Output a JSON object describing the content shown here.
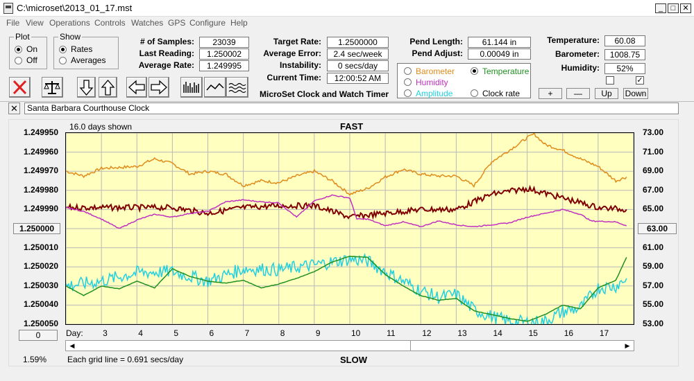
{
  "window": {
    "title": "C:\\microset\\2013_01_17.mst"
  },
  "menu": [
    "File",
    "View",
    "Operations",
    "Controls",
    "Watches",
    "GPS",
    "Configure",
    "Help"
  ],
  "plot_group": {
    "title": "Plot",
    "on": "On",
    "off": "Off",
    "selected": "On"
  },
  "show_group": {
    "title": "Show",
    "rates": "Rates",
    "averages": "Averages",
    "selected": "Rates"
  },
  "stats": {
    "samples_label": "# of Samples:",
    "samples": "23039",
    "last_label": "Last Reading:",
    "last": "1.250002",
    "avg_label": "Average Rate:",
    "avg": "1.249995"
  },
  "rates": {
    "target_label": "Target Rate:",
    "target": "1.2500000",
    "avgerr_label": "Average Error:",
    "avgerr": "2.4 sec/week",
    "instab_label": "Instability:",
    "instab": "0 secs/day",
    "time_label": "Current Time:",
    "time": "12:00:52 AM"
  },
  "app_title": "MicroSet Clock and Watch Timer",
  "pend": {
    "length_label": "Pend Length:",
    "length": "61.144 in",
    "adjust_label": "Pend Adjust:",
    "adjust": "0.00049 in"
  },
  "sensor_select": {
    "barometer": "Barometer",
    "temperature": "Temperature",
    "humidity": "Humidity",
    "amplitude": "Amplitude",
    "clock_rate": "Clock rate",
    "selected": "Temperature",
    "colors": {
      "barometer": "#e08b1a",
      "temperature": "#209020",
      "humidity": "#c030c0",
      "amplitude": "#20d0e0",
      "clock_rate": "#000000"
    }
  },
  "env": {
    "temp_label": "Temperature:",
    "temp": "60.08",
    "baro_label": "Barometer:",
    "baro": "1008.75",
    "hum_label": "Humidity:",
    "hum": "52%",
    "check1": false,
    "check2": true
  },
  "scale_buttons": {
    "plus": "+",
    "minus": "—",
    "up": "Up",
    "down": "Down"
  },
  "toolbar_icons": [
    "close-icon",
    "balance-icon",
    "arrow-down-icon",
    "arrow-up-icon",
    "arrow-left-icon",
    "arrow-right-icon",
    "bars-icon",
    "zigzag-icon",
    "waves-icon"
  ],
  "clock_name": "Santa Barbara Courthouse Clock",
  "chart_labels": {
    "days_shown": "16.0 days shown",
    "fast": "FAST",
    "slow": "SLOW",
    "grid_note": "Each grid line = 0.691 secs/day",
    "pct": "1.59%",
    "day_label": "Day:",
    "offset": "0",
    "center_left": "1.250000",
    "center_right": "63.00"
  },
  "chart_data": {
    "type": "line",
    "x_range": [
      2,
      18
    ],
    "x_ticks": [
      "3",
      "4",
      "5",
      "6",
      "7",
      "8",
      "9",
      "10",
      "11",
      "12",
      "13",
      "14",
      "15",
      "16",
      "17"
    ],
    "y_left_ticks": [
      "1.249950",
      "1.249960",
      "1.249970",
      "1.249980",
      "1.249990",
      "1.250000",
      "1.250010",
      "1.250020",
      "1.250030",
      "1.250040",
      "1.250050"
    ],
    "y_left_range": [
      1.24995,
      1.25005
    ],
    "y_left_inverted": true,
    "y_right_ticks": [
      "73.00",
      "71.00",
      "69.00",
      "67.00",
      "65.00",
      "63.00",
      "61.00",
      "59.00",
      "57.00",
      "55.00",
      "53.00"
    ],
    "y_right_range": [
      53,
      73
    ],
    "grid": true,
    "series": [
      {
        "key": "barometer",
        "color": "#e08b1a",
        "axis": "right",
        "noise": 0.15,
        "points": [
          [
            2,
            69
          ],
          [
            2.5,
            68.5
          ],
          [
            3,
            69.3
          ],
          [
            4,
            69.5
          ],
          [
            4.5,
            70.3
          ],
          [
            5,
            69.8
          ],
          [
            5.5,
            68.7
          ],
          [
            6,
            69
          ],
          [
            6.5,
            68.7
          ],
          [
            7,
            67.5
          ],
          [
            7.5,
            68
          ],
          [
            8,
            67.8
          ],
          [
            8.5,
            68.5
          ],
          [
            9,
            69
          ],
          [
            9.5,
            68
          ],
          [
            10,
            66.6
          ],
          [
            10.5,
            67.2
          ],
          [
            11,
            68.4
          ],
          [
            11.5,
            69.2
          ],
          [
            12,
            68.7
          ],
          [
            12.5,
            68.5
          ],
          [
            13,
            68.5
          ],
          [
            13.5,
            67.5
          ],
          [
            14,
            70
          ],
          [
            14.5,
            71.2
          ],
          [
            15,
            72.5
          ],
          [
            15.2,
            72.9
          ],
          [
            15.5,
            71.8
          ],
          [
            16,
            71.2
          ],
          [
            16.5,
            70.3
          ],
          [
            17,
            69.5
          ],
          [
            17.5,
            68
          ],
          [
            17.8,
            68.4
          ]
        ]
      },
      {
        "key": "clock_rate",
        "color": "#800000",
        "axis": "left",
        "noise": 1.5e-06,
        "points": [
          [
            2,
            1.249989
          ],
          [
            3,
            1.249989
          ],
          [
            4,
            1.249989
          ],
          [
            5,
            1.249989
          ],
          [
            6,
            1.249992
          ],
          [
            7,
            1.249989
          ],
          [
            8,
            1.249988
          ],
          [
            9,
            1.249988
          ],
          [
            10,
            1.249994
          ],
          [
            11,
            1.249992
          ],
          [
            12,
            1.24999
          ],
          [
            13,
            1.24999
          ],
          [
            14,
            1.249982
          ],
          [
            15,
            1.249979
          ],
          [
            16,
            1.249984
          ],
          [
            17,
            1.249989
          ],
          [
            17.8,
            1.24999
          ]
        ]
      },
      {
        "key": "humidity",
        "color": "#c030c0",
        "axis": "right",
        "noise": 0.05,
        "points": [
          [
            2,
            65.2
          ],
          [
            2.5,
            64.8
          ],
          [
            3,
            64
          ],
          [
            3.5,
            63
          ],
          [
            4,
            63.9
          ],
          [
            4.5,
            64.5
          ],
          [
            5,
            64.2
          ],
          [
            5.5,
            64.6
          ],
          [
            6,
            64.8
          ],
          [
            6.5,
            65.8
          ],
          [
            7,
            66
          ],
          [
            7.5,
            65.8
          ],
          [
            8,
            65.7
          ],
          [
            8.5,
            64.2
          ],
          [
            9,
            65.9
          ],
          [
            9.5,
            66.5
          ],
          [
            10,
            66.2
          ],
          [
            10.2,
            64
          ],
          [
            10.5,
            64
          ],
          [
            11,
            63.3
          ],
          [
            11.5,
            63.7
          ],
          [
            12,
            63.2
          ],
          [
            12.5,
            63.8
          ],
          [
            13,
            63.4
          ],
          [
            13.5,
            63.2
          ],
          [
            14,
            63.4
          ],
          [
            14.5,
            63.6
          ],
          [
            15,
            64.2
          ],
          [
            15.5,
            64.6
          ],
          [
            16,
            65
          ],
          [
            16.5,
            64.5
          ],
          [
            16.8,
            63.8
          ],
          [
            17.5,
            63.7
          ],
          [
            17.8,
            63.3
          ]
        ]
      },
      {
        "key": "amplitude",
        "color": "#20d0e0",
        "axis": "right",
        "noise": 0.7,
        "points": [
          [
            2,
            57
          ],
          [
            3,
            57.5
          ],
          [
            4,
            58.4
          ],
          [
            5,
            58.5
          ],
          [
            6,
            57.5
          ],
          [
            7,
            58.8
          ],
          [
            8,
            58.7
          ],
          [
            9,
            59.2
          ],
          [
            10,
            59.8
          ],
          [
            10.5,
            59.6
          ],
          [
            11,
            58.5
          ],
          [
            11.5,
            57.5
          ],
          [
            12,
            56.5
          ],
          [
            12.5,
            55.8
          ],
          [
            13,
            56.1
          ],
          [
            13.5,
            54.5
          ],
          [
            14,
            53.8
          ],
          [
            14.5,
            53.3
          ],
          [
            15,
            53.2
          ],
          [
            15.5,
            53.3
          ],
          [
            16,
            54.3
          ],
          [
            16.5,
            54.7
          ],
          [
            17,
            56.8
          ],
          [
            17.5,
            57
          ],
          [
            17.8,
            57.8
          ]
        ]
      },
      {
        "key": "temperature",
        "color": "#209020",
        "axis": "right",
        "noise": 0.02,
        "points": [
          [
            2,
            57
          ],
          [
            2.5,
            56
          ],
          [
            3,
            57
          ],
          [
            3.5,
            56.7
          ],
          [
            4,
            57.5
          ],
          [
            4.5,
            56.8
          ],
          [
            5,
            58.8
          ],
          [
            5.5,
            58
          ],
          [
            6,
            57.5
          ],
          [
            6.5,
            57.3
          ],
          [
            7,
            57.6
          ],
          [
            7.5,
            56.8
          ],
          [
            8,
            57.2
          ],
          [
            8.5,
            57.8
          ],
          [
            9,
            58.5
          ],
          [
            9.5,
            59.5
          ],
          [
            10,
            60.1
          ],
          [
            10.5,
            60
          ],
          [
            11,
            58.2
          ],
          [
            11.5,
            57
          ],
          [
            12,
            56
          ],
          [
            12.5,
            55.5
          ],
          [
            13,
            55.7
          ],
          [
            13.5,
            54.4
          ],
          [
            14,
            54
          ],
          [
            14.5,
            53.6
          ],
          [
            15,
            53.3
          ],
          [
            15.5,
            54
          ],
          [
            16,
            55
          ],
          [
            16.5,
            54.6
          ],
          [
            17,
            56.8
          ],
          [
            17.5,
            57.6
          ],
          [
            17.8,
            60
          ]
        ]
      }
    ]
  }
}
